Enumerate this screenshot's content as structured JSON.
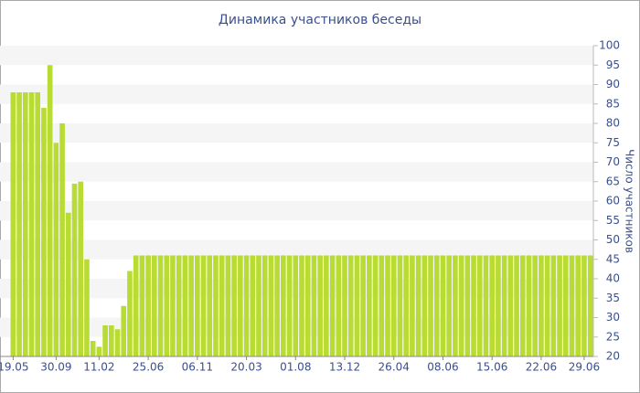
{
  "chart_data": {
    "type": "bar",
    "title": "Динамика участников беседы",
    "y_axis_label": "Число участников",
    "color": "#b8dc34",
    "categories": [
      "19.05",
      null,
      null,
      null,
      null,
      null,
      null,
      "30.09",
      null,
      null,
      null,
      null,
      null,
      null,
      "11.02",
      null,
      null,
      null,
      null,
      null,
      null,
      null,
      "25.06",
      null,
      null,
      null,
      null,
      null,
      null,
      null,
      "06.11",
      null,
      null,
      null,
      null,
      null,
      null,
      null,
      "20.03",
      null,
      null,
      null,
      null,
      null,
      null,
      null,
      "01.08",
      null,
      null,
      null,
      null,
      null,
      null,
      null,
      "13.12",
      null,
      null,
      null,
      null,
      null,
      null,
      null,
      "26.04",
      null,
      null,
      null,
      null,
      null,
      null,
      null,
      "08.06",
      null,
      null,
      null,
      null,
      null,
      null,
      null,
      "15.06",
      null,
      null,
      null,
      null,
      null,
      null,
      null,
      "22.06",
      null,
      null,
      null,
      null,
      null,
      null,
      "29.06",
      null
    ],
    "values": [
      88,
      88,
      88,
      88,
      88,
      84,
      95,
      75,
      80,
      57,
      64.5,
      65,
      45,
      24,
      22.5,
      28,
      28,
      27,
      33,
      42,
      46,
      46,
      46,
      46,
      46,
      46,
      46,
      46,
      46,
      46,
      46,
      46,
      46,
      46,
      46,
      46,
      46,
      46,
      46,
      46,
      46,
      46,
      46,
      46,
      46,
      46,
      46,
      46,
      46,
      46,
      46,
      46,
      46,
      46,
      46,
      46,
      46,
      46,
      46,
      46,
      46,
      46,
      46,
      46,
      46,
      46,
      46,
      46,
      46,
      46,
      46,
      46,
      46,
      46,
      46,
      46,
      46,
      46,
      46,
      46,
      46,
      46,
      46,
      46,
      46,
      46,
      46,
      46,
      46,
      46,
      46,
      46,
      46,
      46,
      46
    ],
    "ylim": [
      20,
      100
    ],
    "yticks": [
      20,
      25,
      30,
      35,
      40,
      45,
      50,
      55,
      60,
      65,
      70,
      75,
      80,
      85,
      90,
      95,
      100
    ],
    "y_axis_side": "right",
    "grid": "bands"
  }
}
